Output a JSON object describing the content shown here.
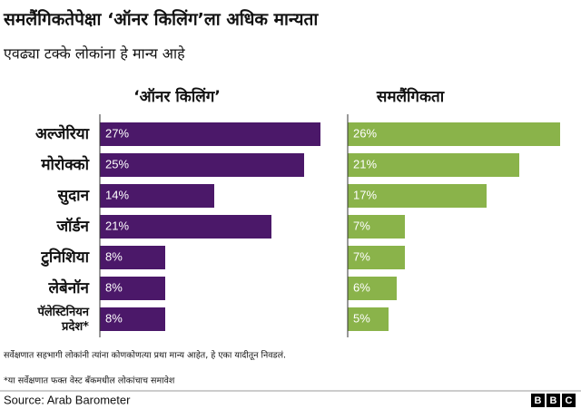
{
  "title": "समलैंगिकतेपेक्षा ‘ऑनर किलिंग’ला अधिक मान्यता",
  "subtitle": "एवढ्या टक्के लोकांना हे मान्य आहे",
  "chart_data": [
    {
      "type": "bar",
      "title": "‘ऑनर किलिंग’",
      "categories": [
        "अल्जेरिया",
        "मोरोक्को",
        "सुदान",
        "जॉर्डन",
        "टुनिशिया",
        "लेबेनॉन",
        "पॅलेस्टिनियन प्रदेश*"
      ],
      "values": [
        27,
        25,
        14,
        21,
        8,
        8,
        8
      ],
      "value_labels": [
        "27%",
        "25%",
        "14%",
        "21%",
        "8%",
        "8%",
        "8%"
      ],
      "color": "#4b1869",
      "xlim": [
        0,
        30
      ]
    },
    {
      "type": "bar",
      "title": "समलैंगिकता",
      "values": [
        26,
        21,
        17,
        7,
        7,
        6,
        5
      ],
      "value_labels": [
        "26%",
        "21%",
        "17%",
        "7%",
        "7%",
        "6%",
        "5%"
      ],
      "color": "#8ab34a",
      "xlim": [
        0,
        30
      ]
    }
  ],
  "notes": [
    "सर्वेक्षणात सहभागी लोकांनी त्यांना कोणकोणत्या प्रथा मान्य आहेत, हे एका यादीतून निवडलं.",
    "*या सर्वेक्षणात फक्त वेस्ट बँकमधील लोकांचाच समावेश"
  ],
  "source": "Source: Arab Barometer",
  "logo": [
    "B",
    "B",
    "C"
  ]
}
